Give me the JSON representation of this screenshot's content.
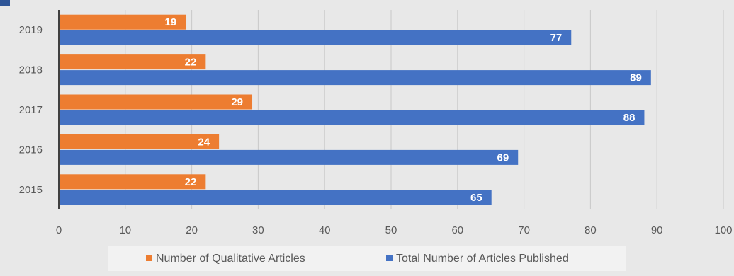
{
  "chart_data": {
    "type": "bar",
    "orientation": "horizontal",
    "categories": [
      "2019",
      "2018",
      "2017",
      "2016",
      "2015"
    ],
    "series": [
      {
        "name": "Number of Qualitative Articles",
        "values": [
          19,
          22,
          29,
          24,
          22
        ],
        "color": "#ed7d31"
      },
      {
        "name": "Total Number of Articles Published",
        "values": [
          77,
          89,
          88,
          69,
          65
        ],
        "color": "#4472c4"
      }
    ],
    "x_ticks": [
      "0",
      "10",
      "20",
      "30",
      "40",
      "50",
      "60",
      "70",
      "80",
      "90",
      "100"
    ],
    "xlim": [
      0,
      100
    ],
    "grid": true,
    "legend": "bottom",
    "data_labels": true,
    "title": "",
    "xlabel": "",
    "ylabel": ""
  }
}
